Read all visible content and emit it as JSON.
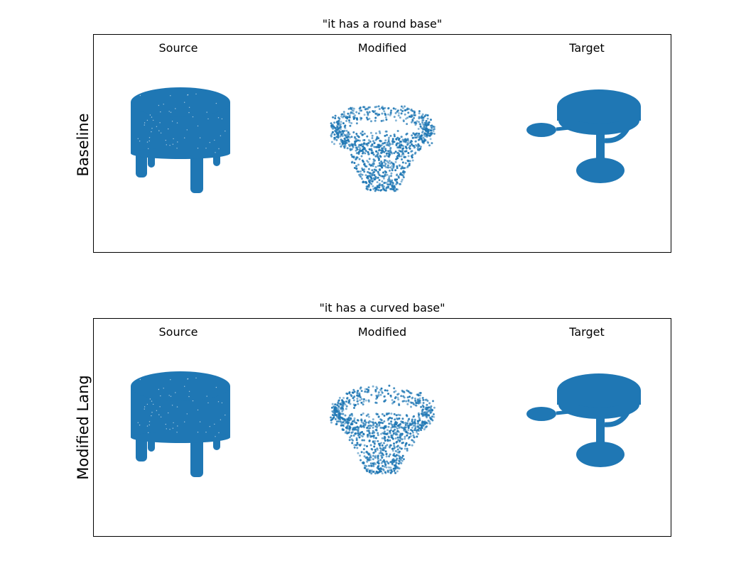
{
  "colors": {
    "point": "#1f77b4",
    "frame": "#000000"
  },
  "panels": [
    {
      "caption": "\"it has a round base\"",
      "row_label": "Baseline",
      "columns": [
        {
          "label": "Source",
          "shape": "stool"
        },
        {
          "label": "Modified",
          "shape": "scatter"
        },
        {
          "label": "Target",
          "shape": "pedestal-table"
        }
      ]
    },
    {
      "caption": "\"it has a curved base\"",
      "row_label": "Modified Lang",
      "columns": [
        {
          "label": "Source",
          "shape": "stool"
        },
        {
          "label": "Modified",
          "shape": "scatter"
        },
        {
          "label": "Target",
          "shape": "pedestal-table"
        }
      ]
    }
  ]
}
